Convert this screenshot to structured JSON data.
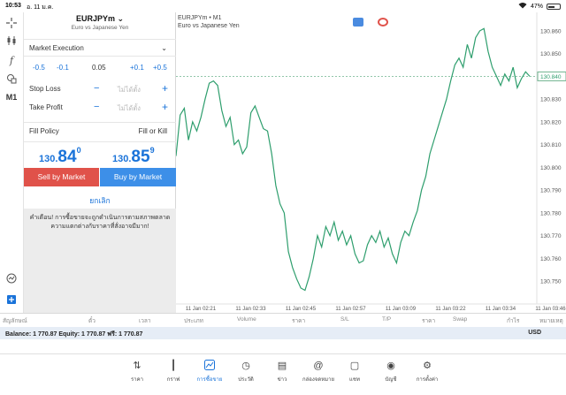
{
  "status": {
    "time": "10:53",
    "date": "อ. 11 ม.ค.",
    "battery": "47%",
    "battery_level": 0.47
  },
  "panel": {
    "symbol": "EURJPYm",
    "symbol_desc": "Euro vs Japanese Yen",
    "execution": "Market Execution",
    "volume": {
      "m05": "-0.5",
      "m01": "-0.1",
      "value": "0.05",
      "p01": "+0.1",
      "p05": "+0.5"
    },
    "stop_loss": {
      "label": "Stop Loss",
      "placeholder": "ไม่ได้ตั้ง"
    },
    "take_profit": {
      "label": "Take Profit",
      "placeholder": "ไม่ได้ตั้ง"
    },
    "fill_policy": {
      "label": "Fill Policy",
      "value": "Fill or Kill"
    },
    "bid": {
      "small": "130.",
      "big": "84",
      "sup": "0"
    },
    "ask": {
      "small": "130.",
      "big": "85",
      "sup": "9"
    },
    "sell_label": "Sell by Market",
    "buy_label": "Buy by Market",
    "cancel_label": "ยกเลิก",
    "warning": "คำเตือน! การซื้อขายจะถูกดำเนินการตามสภาพตลาด ความแตกต่างกับราคาที่สั่งอาจมีมาก!"
  },
  "chart_data": {
    "type": "line",
    "title": "EURJPYm • M1",
    "subtitle": "Euro vs Japanese Yen",
    "ylim": [
      130.74,
      130.865
    ],
    "y_ticks": [
      "130.860",
      "130.850",
      "130.840",
      "130.830",
      "130.820",
      "130.810",
      "130.800",
      "130.790",
      "130.780",
      "130.770",
      "130.760",
      "130.750"
    ],
    "current_price": "130.840",
    "current_value": 130.84,
    "x_ticks": [
      "11 Jan 02:21",
      "11 Jan 02:33",
      "11 Jan 02:45",
      "11 Jan 02:57",
      "11 Jan 03:09",
      "11 Jan 03:22",
      "11 Jan 03:34",
      "11 Jan 03:46"
    ],
    "values": [
      130.805,
      130.823,
      130.826,
      130.812,
      130.82,
      130.816,
      130.822,
      130.83,
      130.837,
      130.838,
      130.836,
      130.825,
      130.818,
      130.822,
      130.81,
      130.812,
      130.806,
      130.809,
      130.824,
      130.827,
      130.822,
      130.817,
      130.816,
      130.806,
      130.792,
      130.784,
      130.78,
      130.763,
      130.756,
      130.751,
      130.747,
      130.746,
      130.752,
      130.76,
      130.77,
      130.765,
      130.774,
      130.77,
      130.776,
      130.768,
      130.772,
      130.766,
      130.77,
      130.762,
      130.758,
      130.759,
      130.766,
      130.77,
      130.767,
      130.772,
      130.765,
      130.769,
      130.762,
      130.758,
      130.767,
      130.772,
      130.77,
      130.776,
      130.781,
      130.79,
      130.796,
      130.806,
      130.812,
      130.818,
      130.824,
      130.83,
      130.838,
      130.845,
      130.848,
      130.844,
      130.854,
      130.848,
      130.857,
      130.86,
      130.861,
      130.851,
      130.844,
      130.84,
      130.836,
      130.841,
      130.838,
      130.844,
      130.835,
      130.839,
      130.842,
      130.84
    ]
  },
  "chart_icons": {
    "left_color": "#4a8be0",
    "right_color": "#e0524a"
  },
  "table_head": [
    "สัญลักษณ์",
    "ตั๋ว",
    "เวลา",
    "ประเภท",
    "Volume",
    "ราคา",
    "S/L",
    "T/P",
    "ราคา",
    "Swap",
    "กำไร",
    "หมายเหตุ"
  ],
  "balance": {
    "text": "Balance: 1 770.87 Equity: 1 770.87 ฟรี: 1 770.87",
    "currency": "USD"
  },
  "nav": [
    {
      "label": "ราคา",
      "icon": "quotes-icon"
    },
    {
      "label": "กราฟ",
      "icon": "candles-icon"
    },
    {
      "label": "การซื้อขาย",
      "icon": "trade-icon"
    },
    {
      "label": "ประวัติ",
      "icon": "history-icon"
    },
    {
      "label": "ข่าว",
      "icon": "news-icon"
    },
    {
      "label": "กล่องจดหมาย",
      "icon": "mail-icon"
    },
    {
      "label": "แชท",
      "icon": "chat-icon"
    },
    {
      "label": "บัญชี",
      "icon": "account-icon"
    },
    {
      "label": "การตั้งค่า",
      "icon": "settings-icon"
    }
  ]
}
